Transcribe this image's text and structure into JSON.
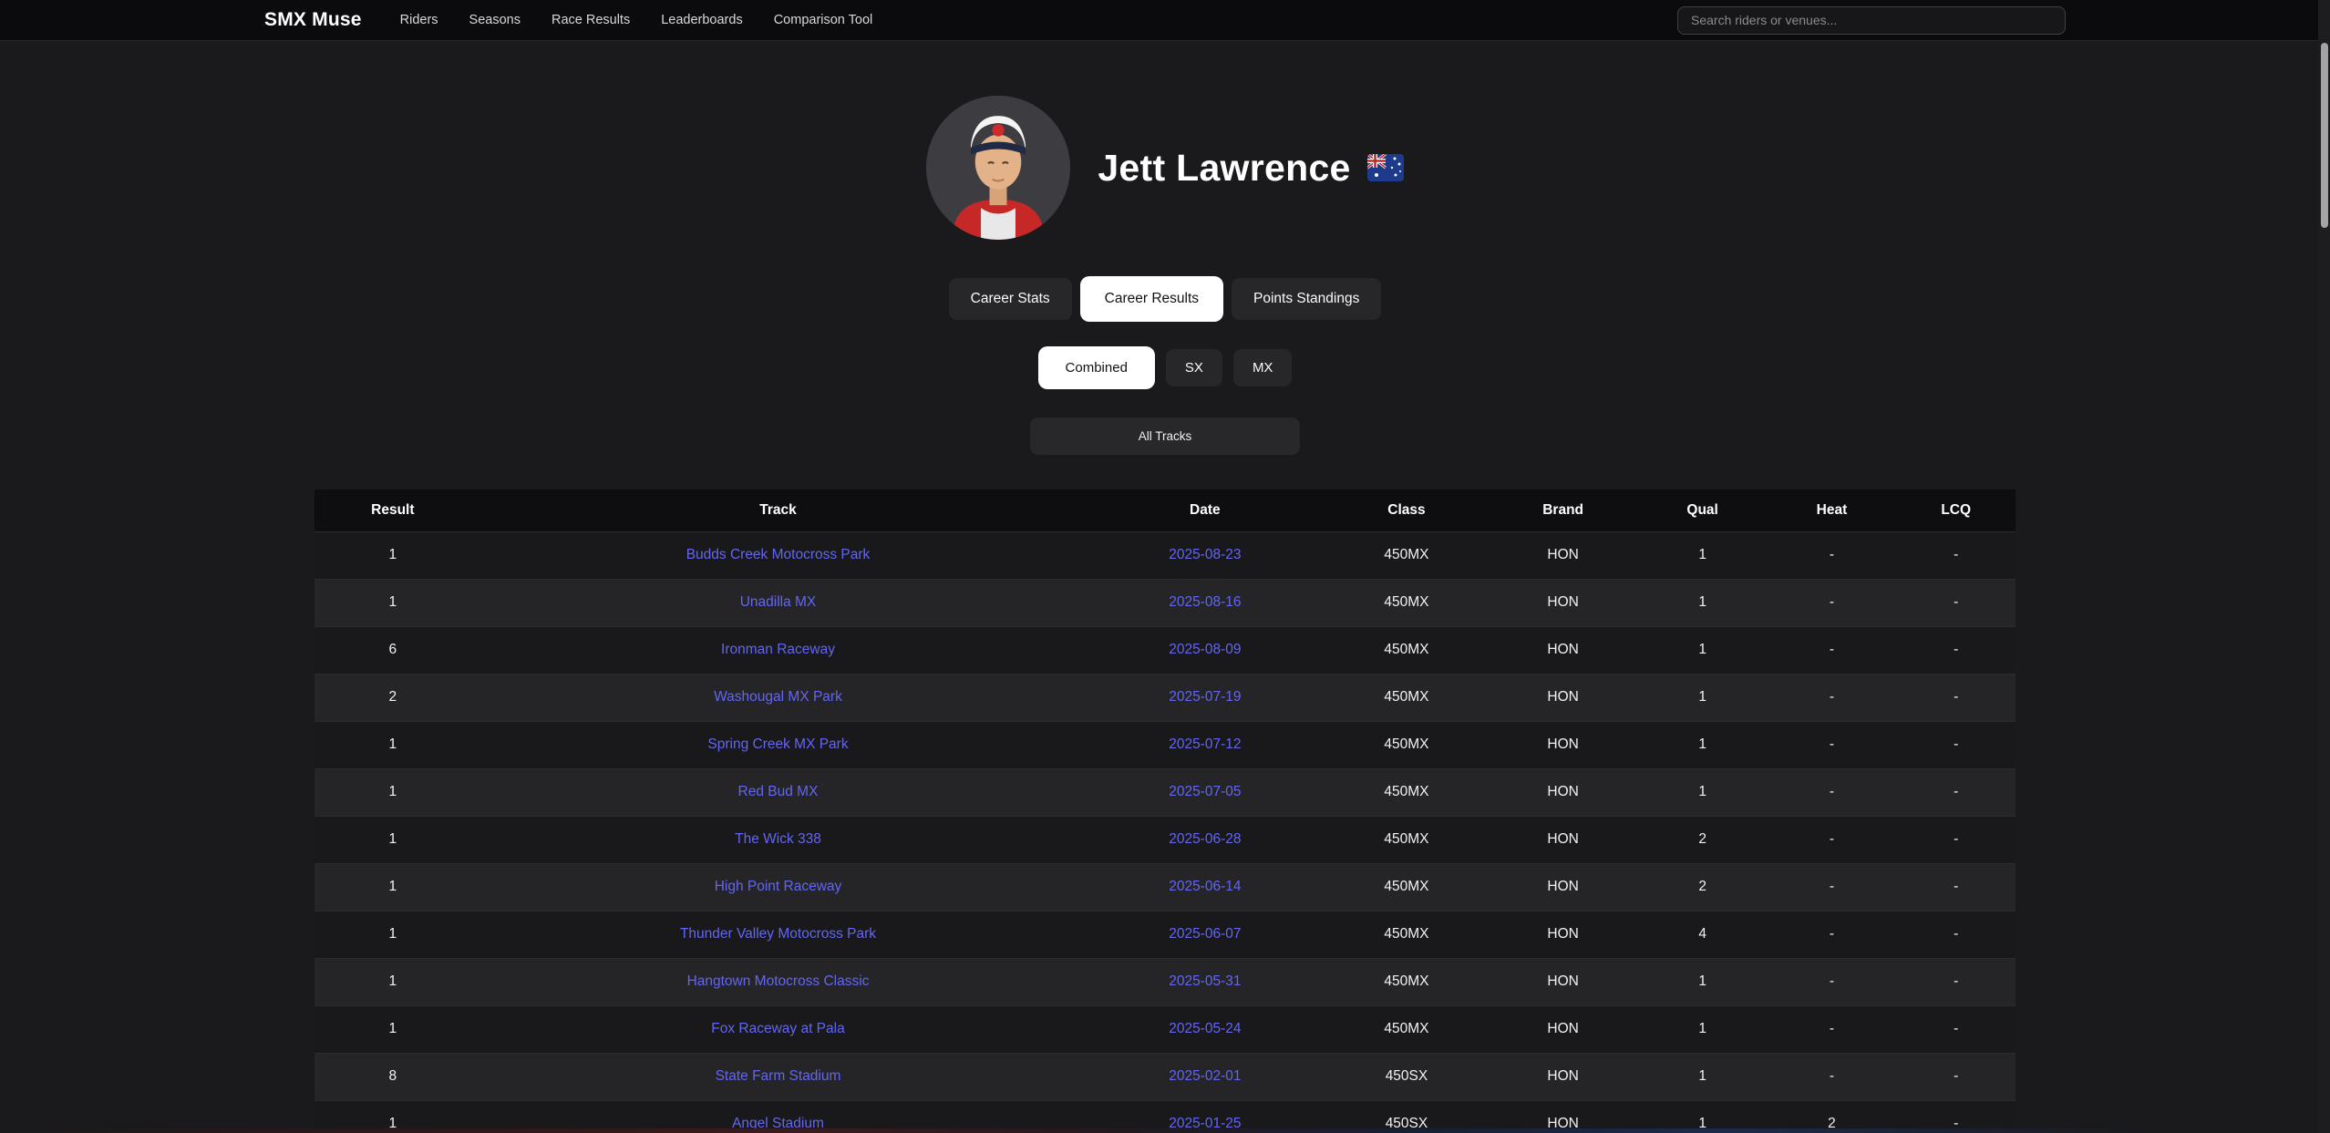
{
  "brand": "SMX Muse",
  "nav": {
    "items": [
      "Riders",
      "Seasons",
      "Race Results",
      "Leaderboards",
      "Comparison Tool"
    ]
  },
  "search": {
    "placeholder": "Search riders or venues..."
  },
  "profile": {
    "name": "Jett Lawrence",
    "nationality": "Australia"
  },
  "tabs": [
    {
      "label": "Career Stats",
      "active": false
    },
    {
      "label": "Career Results",
      "active": true
    },
    {
      "label": "Points Standings",
      "active": false
    }
  ],
  "class_filters": [
    {
      "label": "Combined",
      "active": true
    },
    {
      "label": "SX",
      "active": false
    },
    {
      "label": "MX",
      "active": false
    }
  ],
  "track_filter": {
    "label": "All Tracks"
  },
  "results_table": {
    "columns": [
      "Result",
      "Track",
      "Date",
      "Class",
      "Brand",
      "Qual",
      "Heat",
      "LCQ"
    ],
    "rows": [
      [
        "1",
        "Budds Creek Motocross Park",
        "2025-08-23",
        "450MX",
        "HON",
        "1",
        "-",
        "-"
      ],
      [
        "1",
        "Unadilla MX",
        "2025-08-16",
        "450MX",
        "HON",
        "1",
        "-",
        "-"
      ],
      [
        "6",
        "Ironman Raceway",
        "2025-08-09",
        "450MX",
        "HON",
        "1",
        "-",
        "-"
      ],
      [
        "2",
        "Washougal MX Park",
        "2025-07-19",
        "450MX",
        "HON",
        "1",
        "-",
        "-"
      ],
      [
        "1",
        "Spring Creek MX Park",
        "2025-07-12",
        "450MX",
        "HON",
        "1",
        "-",
        "-"
      ],
      [
        "1",
        "Red Bud MX",
        "2025-07-05",
        "450MX",
        "HON",
        "1",
        "-",
        "-"
      ],
      [
        "1",
        "The Wick 338",
        "2025-06-28",
        "450MX",
        "HON",
        "2",
        "-",
        "-"
      ],
      [
        "1",
        "High Point Raceway",
        "2025-06-14",
        "450MX",
        "HON",
        "2",
        "-",
        "-"
      ],
      [
        "1",
        "Thunder Valley Motocross Park",
        "2025-06-07",
        "450MX",
        "HON",
        "4",
        "-",
        "-"
      ],
      [
        "1",
        "Hangtown Motocross Classic",
        "2025-05-31",
        "450MX",
        "HON",
        "1",
        "-",
        "-"
      ],
      [
        "1",
        "Fox Raceway at Pala",
        "2025-05-24",
        "450MX",
        "HON",
        "1",
        "-",
        "-"
      ],
      [
        "8",
        "State Farm Stadium",
        "2025-02-01",
        "450SX",
        "HON",
        "1",
        "-",
        "-"
      ],
      [
        "1",
        "Angel Stadium",
        "2025-01-25",
        "450SX",
        "HON",
        "1",
        "2",
        "-"
      ]
    ]
  },
  "colors": {
    "link_accent": "#6366f1",
    "active_pill_bg": "#ffffff",
    "active_pill_text": "#111113",
    "page_bg": "#1a1a1c",
    "topbar_bg": "#0b0b0d"
  }
}
